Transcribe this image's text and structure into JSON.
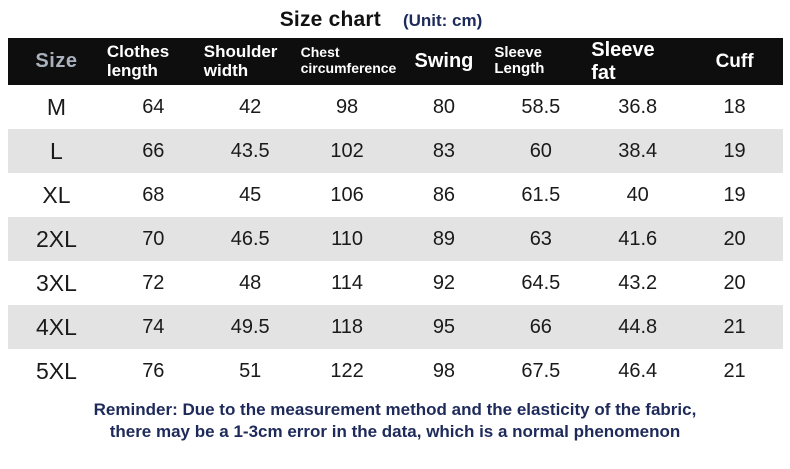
{
  "title": {
    "main": "Size chart",
    "unit": "(Unit: cm)"
  },
  "chart_data": {
    "type": "table",
    "title": "Size chart",
    "unit": "(Unit: cm)",
    "columns": [
      "Size",
      "Clothes length",
      "Shoulder width",
      "Chest circumference",
      "Swing",
      "Sleeve Length",
      "Sleeve fat",
      "Cuff"
    ],
    "rows": [
      [
        "M",
        64,
        42,
        98,
        80,
        58.5,
        36.8,
        18
      ],
      [
        "L",
        66,
        43.5,
        102,
        83,
        60,
        38.4,
        19
      ],
      [
        "XL",
        68,
        45,
        106,
        86,
        61.5,
        40,
        19
      ],
      [
        "2XL",
        70,
        46.5,
        110,
        89,
        63,
        41.6,
        20
      ],
      [
        "3XL",
        72,
        48,
        114,
        92,
        64.5,
        43.2,
        20
      ],
      [
        "4XL",
        74,
        49.5,
        118,
        95,
        66,
        44.8,
        21
      ],
      [
        "5XL",
        76,
        51,
        122,
        98,
        67.5,
        46.4,
        21
      ]
    ],
    "layout": {
      "header_style": "black bar, white bold labels, 'Size' label in light gray",
      "row_striping": "odd rows white, even rows light gray",
      "grid": false
    }
  },
  "footer": {
    "lines": [
      "Reminder: Due to the measurement method and the elasticity of the fabric,",
      "there may be a 1-3cm error in the data, which is a normal phenomenon"
    ]
  },
  "colors": {
    "header_bg": "#0e0e0e",
    "header_text": "#ffffff",
    "size_header_text": "#a9b2bc",
    "row_alt_bg": "#e3e3e3",
    "row_text": "#1a1a1a",
    "note_color": "#1e2a5a",
    "title_color": "#111111",
    "page_bg": "#ffffff"
  }
}
